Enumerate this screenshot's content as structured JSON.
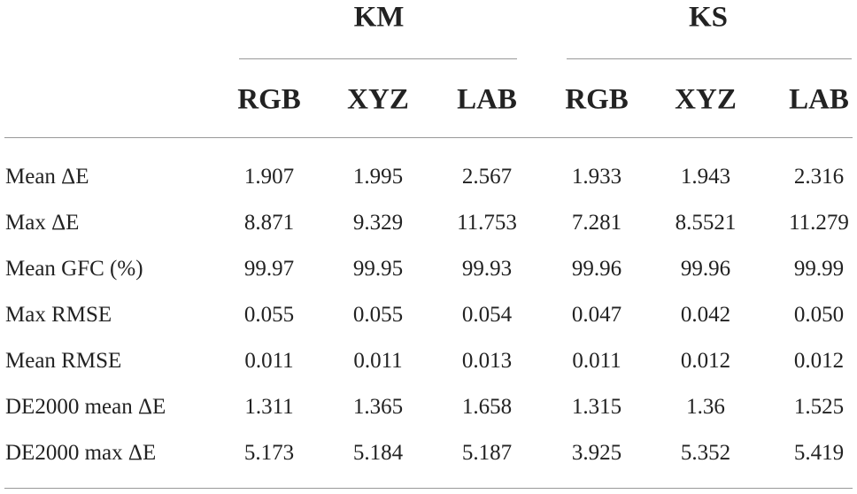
{
  "table": {
    "groups": [
      "KM",
      "KS"
    ],
    "columns": [
      "RGB",
      "XYZ",
      "LAB",
      "RGB",
      "XYZ",
      "LAB"
    ],
    "rows": [
      [
        "Mean ΔE",
        "1.907",
        "1.995",
        "2.567",
        "1.933",
        "1.943",
        "2.316"
      ],
      [
        "Max ΔE",
        "8.871",
        "9.329",
        "11.753",
        "7.281",
        "8.5521",
        "11.279"
      ],
      [
        "Mean GFC (%)",
        "99.97",
        "99.95",
        "99.93",
        "99.96",
        "99.96",
        "99.99"
      ],
      [
        "Max RMSE",
        "0.055",
        "0.055",
        "0.054",
        "0.047",
        "0.042",
        "0.050"
      ],
      [
        "Mean RMSE",
        "0.011",
        "0.011",
        "0.013",
        "0.011",
        "0.012",
        "0.012"
      ],
      [
        "DE2000 mean ΔE",
        "1.311",
        "1.365",
        "1.658",
        "1.315",
        "1.36",
        "1.525"
      ],
      [
        "DE2000 max ΔE",
        "5.173",
        "5.184",
        "5.187",
        "3.925",
        "5.352",
        "5.419"
      ]
    ]
  }
}
